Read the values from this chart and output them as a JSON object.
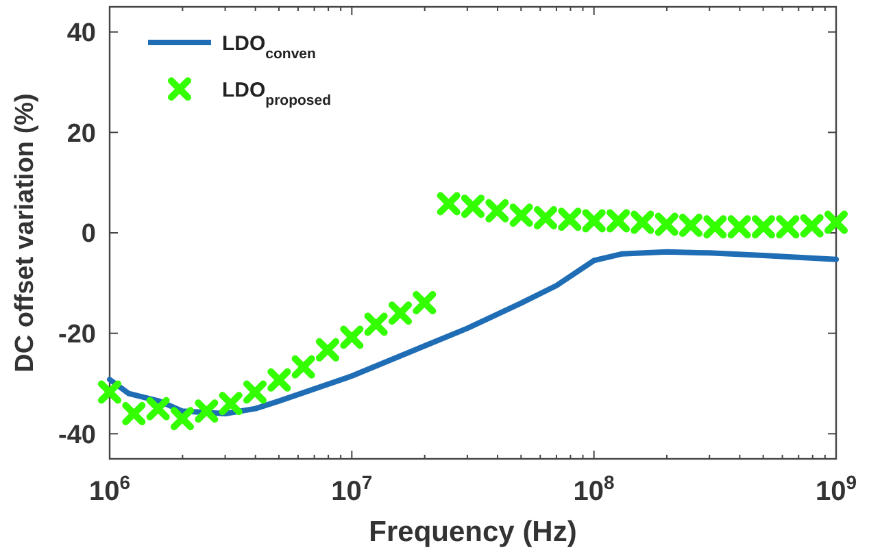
{
  "chart_data": {
    "type": "line",
    "xlabel": "Frequency (Hz)",
    "ylabel": "DC offset variation (%)",
    "log": "x",
    "xlim": [
      1000000,
      1000000000
    ],
    "xticks": [
      {
        "value": 1000000,
        "label": "10$^{6}$"
      },
      {
        "value": 10000000,
        "label": "10$^{7}$"
      },
      {
        "value": 100000000,
        "label": "10$^{8}$"
      },
      {
        "value": 1000000000,
        "label": "10$^{9}$"
      }
    ],
    "ylim": [
      -45,
      45
    ],
    "yticks": [
      -40,
      -20,
      0,
      20,
      40
    ],
    "grid": false,
    "legend": "top left",
    "series": [
      {
        "name": "LDO$_{conven}$",
        "color": "#1f6db5",
        "marker": "none",
        "line_style": "solid",
        "x": [
          1000000,
          1200000,
          1600000,
          2000000,
          3000000,
          4000000,
          5000000,
          10000000,
          20000000,
          30000000,
          50000000,
          70000000,
          100000000,
          130000000,
          200000000,
          300000000,
          500000000,
          1000000000
        ],
        "values": [
          -29.2,
          -32,
          -33.5,
          -35.5,
          -36,
          -35,
          -33.5,
          -28.5,
          -22.5,
          -19,
          -14,
          -10.5,
          -5.5,
          -4.2,
          -3.8,
          -4,
          -4.5,
          -5.3
        ]
      },
      {
        "name": "LDO$_{proposed}$",
        "type": "scatter",
        "color": "#33ff00",
        "marker": "cross",
        "x": [
          1000000,
          1259000,
          1585000,
          1995000,
          2512000,
          3162000,
          3981000,
          5012000,
          6310000,
          7943000,
          10000000,
          12590000,
          15850000,
          19950000,
          25120000,
          31620000,
          39810000,
          50120000,
          63100000,
          79430000,
          100000000,
          125900000,
          158500000,
          199500000,
          251200000,
          316200000,
          398100000,
          501200000,
          631000000,
          794300000,
          1000000000
        ],
        "values": [
          -31.7,
          -36,
          -35,
          -37,
          -35.5,
          -34,
          -31.7,
          -29.3,
          -26.7,
          -23.3,
          -20.8,
          -18.2,
          -16,
          -13.9,
          5.8,
          5.3,
          4.4,
          3.5,
          3,
          2.7,
          2.4,
          2.4,
          2.1,
          1.7,
          1.5,
          1.2,
          1.2,
          1.2,
          1.2,
          1.4,
          2.1
        ]
      }
    ]
  }
}
